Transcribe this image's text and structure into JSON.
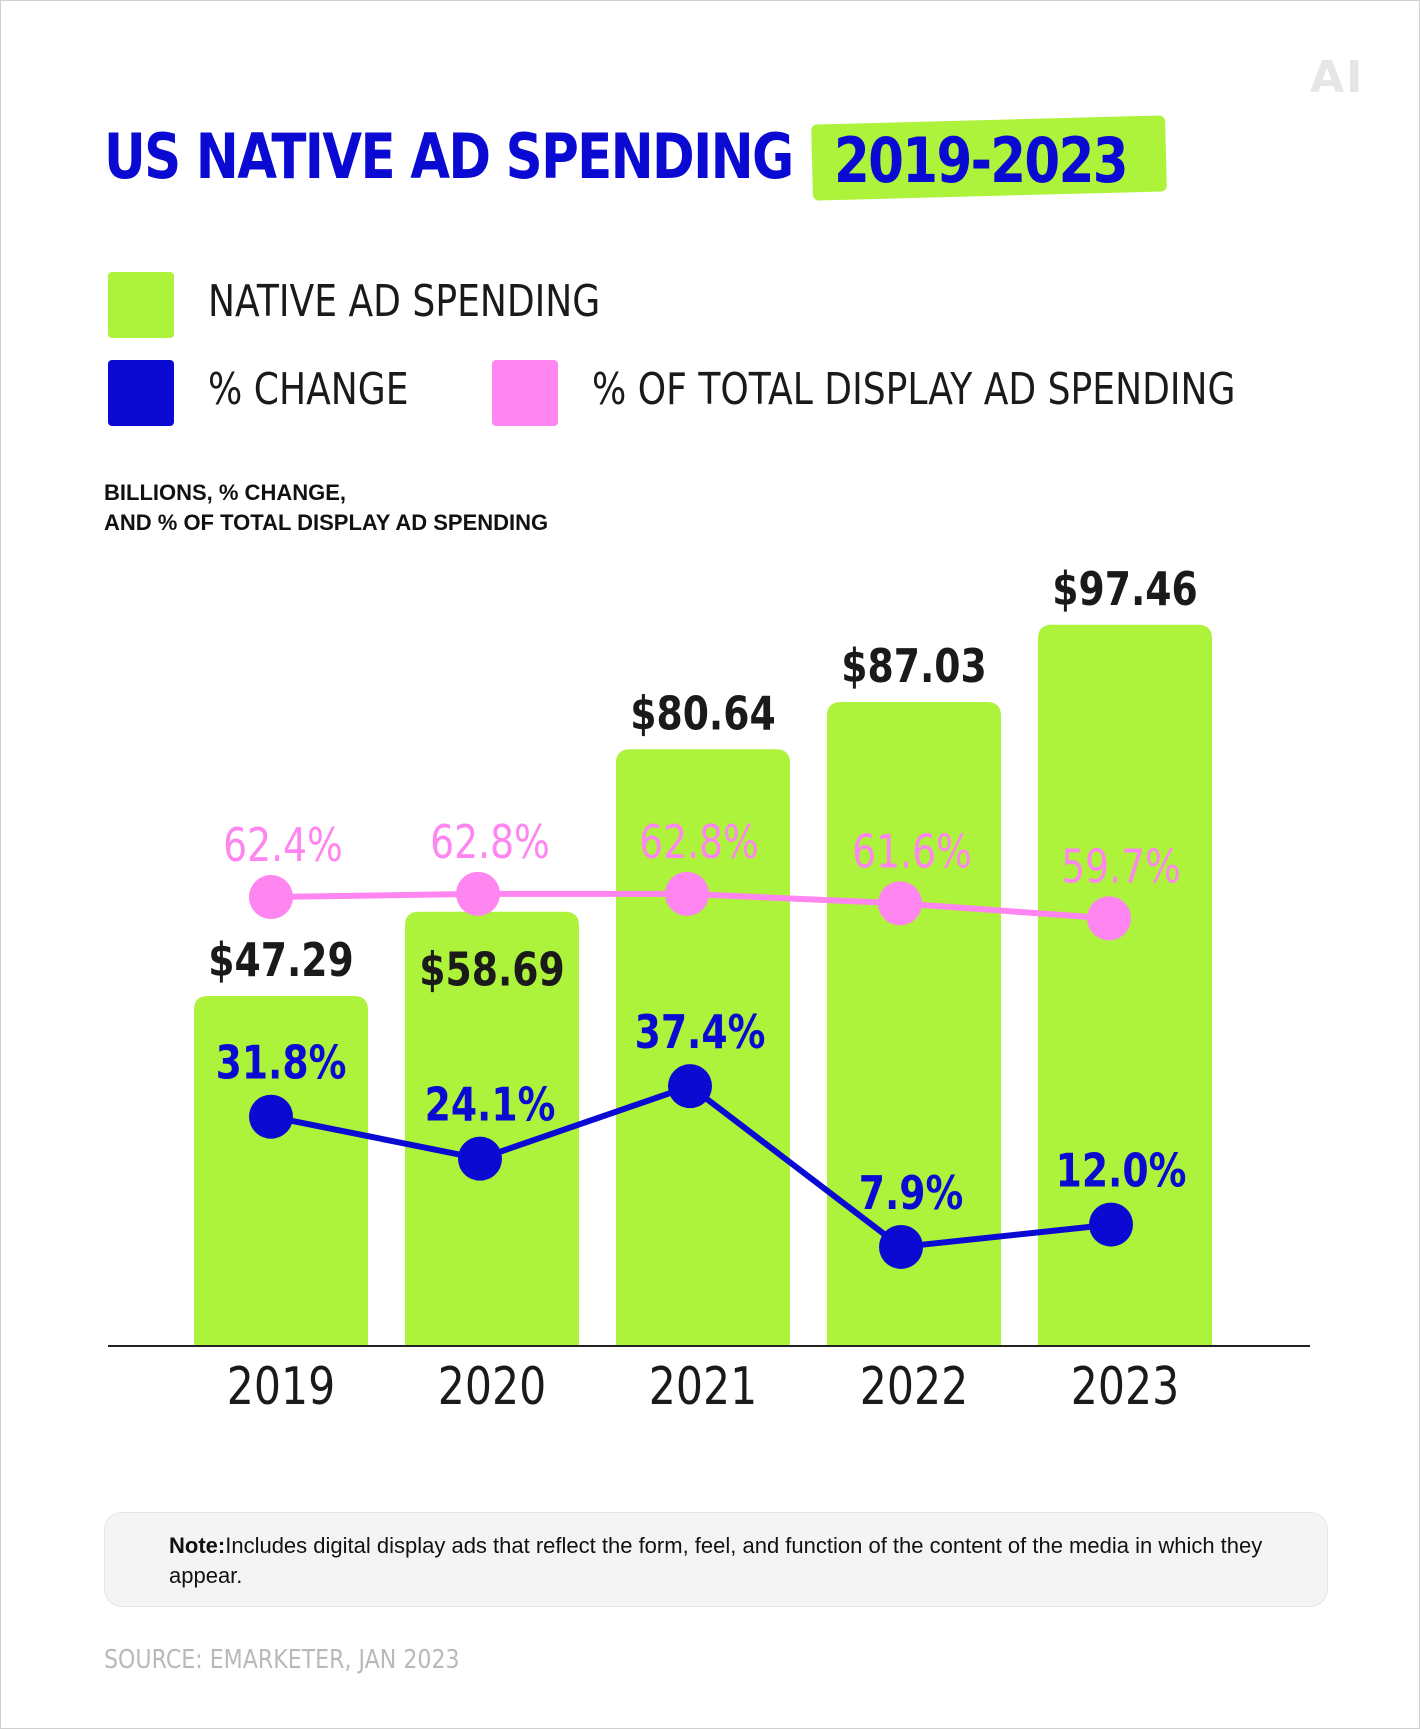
{
  "logo": "AI",
  "title": {
    "main": "US NATIVE AD SPENDING",
    "years": "2019-2023"
  },
  "legend": [
    {
      "label": "NATIVE AD SPENDING",
      "color": "#adf23b"
    },
    {
      "label": "% CHANGE",
      "color": "#0a0ad2"
    },
    {
      "label": "% OF TOTAL DISPLAY AD SPENDING",
      "color": "#ff85f0"
    }
  ],
  "units": {
    "line1": "BILLIONS, % CHANGE,",
    "line2": "AND % OF TOTAL DISPLAY AD SPENDING"
  },
  "chart_data": {
    "type": "bar",
    "title": "US NATIVE AD SPENDING 2019-2023",
    "categories": [
      "2019",
      "2020",
      "2021",
      "2022",
      "2023"
    ],
    "series": [
      {
        "name": "NATIVE AD SPENDING",
        "type": "bar",
        "color": "#adf23b",
        "values": [
          47.29,
          58.69,
          80.64,
          87.03,
          97.46
        ],
        "labels": [
          "$47.29",
          "$58.69",
          "$80.64",
          "$87.03",
          "$97.46"
        ]
      },
      {
        "name": "% CHANGE",
        "type": "line",
        "color": "#0a0ad2",
        "values": [
          31.8,
          24.1,
          37.4,
          7.9,
          12.0
        ],
        "labels": [
          "31.8%",
          "24.1%",
          "37.4%",
          "7.9%",
          "12.0%"
        ]
      },
      {
        "name": "% OF TOTAL DISPLAY AD SPENDING",
        "type": "line",
        "color": "#ff85f0",
        "values": [
          62.4,
          62.8,
          62.8,
          61.6,
          59.7
        ],
        "labels": [
          "62.4%",
          "62.8%",
          "62.8%",
          "61.6%",
          "59.7%"
        ]
      }
    ],
    "ylim": [
      0,
      100
    ],
    "grid": false,
    "legend_position": "top"
  },
  "note": {
    "label": "Note:",
    "text": "Includes digital display ads that reflect the form, feel, and function of the content of the media in which they appear."
  },
  "source": "SOURCE: EMARKETER, JAN 2023"
}
